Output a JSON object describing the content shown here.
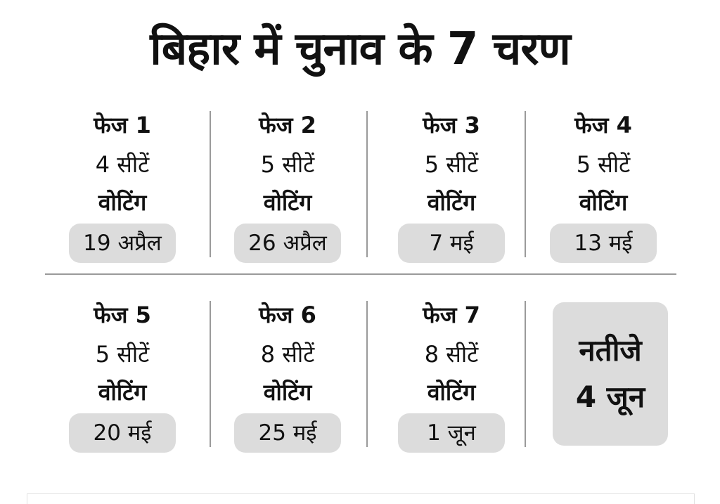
{
  "title": "बिहार में चुनाव के 7 चरण",
  "phases": [
    {
      "phase": "फेज 1",
      "seats": "4 सीटें",
      "voting_label": "वोटिंग",
      "date": "19 अप्रैल"
    },
    {
      "phase": "फेज 2",
      "seats": "5 सीटें",
      "voting_label": "वोटिंग",
      "date": "26 अप्रैल"
    },
    {
      "phase": "फेज 3",
      "seats": "5 सीटें",
      "voting_label": "वोटिंग",
      "date": "7 मई"
    },
    {
      "phase": "फेज 4",
      "seats": "5 सीटें",
      "voting_label": "वोटिंग",
      "date": "13 मई"
    },
    {
      "phase": "फेज 5",
      "seats": "5 सीटें",
      "voting_label": "वोटिंग",
      "date": "20 मई"
    },
    {
      "phase": "फेज 6",
      "seats": "8 सीटें",
      "voting_label": "वोटिंग",
      "date": "25 मई"
    },
    {
      "phase": "फेज 7",
      "seats": "8 सीटें",
      "voting_label": "वोटिंग",
      "date": "1 जून"
    }
  ],
  "result": {
    "label": "नतीजे",
    "date": "4 जून"
  },
  "colors": {
    "text": "#111111",
    "pill_bg": "#dcdcdc",
    "divider": "#9a9a9a",
    "background": "#ffffff"
  }
}
